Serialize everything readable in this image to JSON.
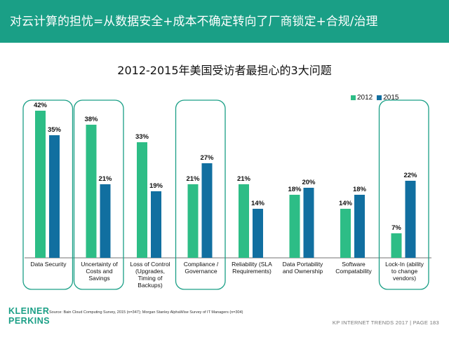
{
  "header": {
    "title": "对云计算的担忧=从数据安全+成本不确定转向了厂商锁定+合规/治理"
  },
  "chart_data": {
    "type": "bar",
    "title": "2012-2015年美国受访者最担心的3大问题",
    "categories": [
      [
        "Data Security"
      ],
      [
        "Uncertainty of",
        "Costs and",
        "Savings"
      ],
      [
        "Loss of Control",
        "(Upgrades,",
        "Timing of",
        "Backups)"
      ],
      [
        "Compliance /",
        "Governance"
      ],
      [
        "Reliability (SLA",
        "Requirements)"
      ],
      [
        "Data Portability",
        "and Ownership"
      ],
      [
        "Software",
        "Compatability"
      ],
      [
        "Lock-In (ability",
        "to change",
        "vendors)"
      ]
    ],
    "series": [
      {
        "name": "2012",
        "values": [
          42,
          38,
          33,
          21,
          21,
          18,
          14,
          7
        ],
        "color": "#2dbd86"
      },
      {
        "name": "2015",
        "values": [
          35,
          21,
          19,
          27,
          14,
          20,
          18,
          22
        ],
        "color": "#116fa0"
      }
    ],
    "value_suffix": "%",
    "ylim": [
      0,
      45
    ],
    "grid": false,
    "legend_position": "top-right",
    "highlighted_categories": [
      0,
      1,
      3,
      7
    ],
    "highlight_color": "#1a9f86"
  },
  "source": "Source: Bain Cloud Computing Survey, 2015 (n=347); Morgan Stanley AlphaWise Survey of IT Managers (n=304)",
  "logo": {
    "line1": "KLEINER",
    "line2": "PERKINS"
  },
  "footer": "KP INTERNET TRENDS 2017  |  PAGE 183"
}
